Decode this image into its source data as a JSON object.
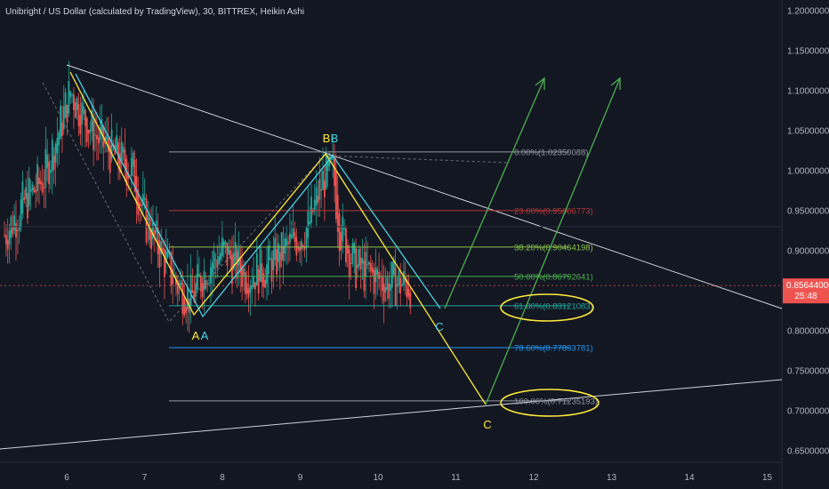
{
  "title": "Unibright / US Dollar (calculated by TradingView), 30, BITTREX, Heikin Ashi",
  "price_axis": {
    "ticks": [
      "1.20000000",
      "1.15000000",
      "1.10000000",
      "1.05000000",
      "1.00000000",
      "0.95000000",
      "0.90000000",
      "0.85000000",
      "0.80000000",
      "0.75000000",
      "0.70000000",
      "0.65000000"
    ],
    "current_price": "0.85644000",
    "countdown": "25:48",
    "hidden_price": "0.850..."
  },
  "time_axis": {
    "ticks": [
      "6",
      "7",
      "8",
      "9",
      "10",
      "11",
      "12",
      "13",
      "14",
      "15"
    ]
  },
  "colors": {
    "background": "#131722",
    "up": "#26a69a",
    "down": "#ef5350",
    "yellow": "#ffeb3b",
    "cyan": "#4dd0e1",
    "green": "#4caf50",
    "white_line": "#cfd2d8",
    "red_level": "#b23a3a",
    "price_tag": "#ef5350"
  },
  "chart_data": {
    "type": "candlestick",
    "title": "Unibright / US Dollar (calculated by TradingView), 30, BITTREX, Heikin Ashi",
    "ylim": [
      0.625,
      1.225
    ],
    "xlim": [
      5.2,
      15.2
    ],
    "x_ticks": [
      "6",
      "7",
      "8",
      "9",
      "10",
      "11",
      "12",
      "13",
      "14",
      "15"
    ],
    "fib_levels": [
      {
        "label": "0.00%(1.02350088)",
        "value": 1.0235,
        "color": "#9598a1"
      },
      {
        "label": "23.60%(0.95006773)",
        "value": 0.9501,
        "color": "#b23a3a"
      },
      {
        "label": "38.20%(0.90464198)",
        "value": 0.9046,
        "color": "#8bc34a"
      },
      {
        "label": "50.00%(0.86792641)",
        "value": 0.8679,
        "color": "#4caf50"
      },
      {
        "label": "61.80%(0.83121083)",
        "value": 0.8312,
        "color": "#26a69a"
      },
      {
        "label": "78.60%(0.77893781)",
        "value": 0.7789,
        "color": "#2196f3"
      },
      {
        "label": "100.00%(0.71235193)",
        "value": 0.7124,
        "color": "#9598a1"
      }
    ],
    "wave_labels": [
      {
        "text": "A",
        "color": "#ffeb3b"
      },
      {
        "text": "A",
        "color": "#4dd0e1"
      },
      {
        "text": "B",
        "color": "#ffeb3b"
      },
      {
        "text": "B",
        "color": "#4dd0e1"
      },
      {
        "text": "C",
        "color": "#4dd0e1"
      },
      {
        "text": "C",
        "color": "#ffeb3b"
      }
    ],
    "current_price": 0.85644
  }
}
